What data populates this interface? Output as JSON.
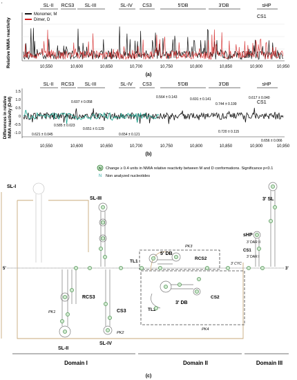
{
  "panel_a": {
    "ylabel": "Relative NMIA reactivity",
    "legend": [
      "Monomer, M",
      "Dimer, D"
    ],
    "legend_colors": [
      "#111111",
      "#d42020"
    ],
    "regions": [
      "SL-II",
      "RCS3",
      "SL-III",
      "SL-IV",
      "CS3",
      "5'DB",
      "3'DB",
      "sHP",
      "CS1"
    ],
    "xticks": [
      "10,550",
      "10,600",
      "10,650",
      "10,700",
      "10,750",
      "10,800",
      "10,850",
      "10,900",
      "10,950"
    ],
    "panel_label": "(a)"
  },
  "panel_b": {
    "ylabel_1": "Differences in relative",
    "ylabel_2": "NMIA reactivity (D-M)",
    "yticks": [
      "1.5",
      "1.0",
      "0.5",
      "0",
      "-0.5",
      "-1.0"
    ],
    "regions": [
      "SL-II",
      "RCS3",
      "SL-III",
      "SL-IV",
      "CS3",
      "5'DB",
      "3'DB",
      "sHP",
      "CS1"
    ],
    "xticks": [
      "10,550",
      "10,600",
      "10,650",
      "10,700",
      "10,750",
      "10,800",
      "10,850",
      "10,900",
      "10,950"
    ],
    "annotations": [
      "0.564 ± 0.143",
      "0.691 ± 0.141",
      "0.607 ± 0.058",
      "0.744 ± 0.199",
      "0.617 ± 0.040",
      "0.585 ± 0.023",
      "0.651 ± 0.129",
      "0.621 ± 0.045",
      "0.654 ± 0.121",
      "0.720 ± 0.115",
      "0.656 ± 0.066"
    ],
    "panel_label": "(b)"
  },
  "panel_c": {
    "legend_change": "Change ≥ 0.4 units in NMIA relative reactivity between M and D conformations. Significance p<0.1",
    "legend_na": "Non analyzed nucleotides",
    "legend_circle_letter": "N",
    "labels": {
      "sl1": "SL-I",
      "sl3": "SL-III",
      "sl2": "SL-II",
      "sl4": "SL-IV",
      "rcs3": "RCS3",
      "cs3": "CS3",
      "tl1": "TL1",
      "tl2": "TL2",
      "db5": "5' DB",
      "db3": "3' DB",
      "rcs2": "RCS2",
      "cs2": "CS2",
      "pk1": "PK1",
      "pk2": "PK2",
      "pk3": "PK3",
      "pk4": "PK4",
      "sl3p": "3' SL",
      "shp": "sHP",
      "cs1": "CS1",
      "dar2": "3' DAR II",
      "dar1": "3' DAR I",
      "cyc": "3' CYC",
      "five": "5'",
      "three": "3'"
    },
    "domains": [
      "Domain I",
      "Domain II",
      "Domain III"
    ],
    "panel_label": "(c)"
  }
}
